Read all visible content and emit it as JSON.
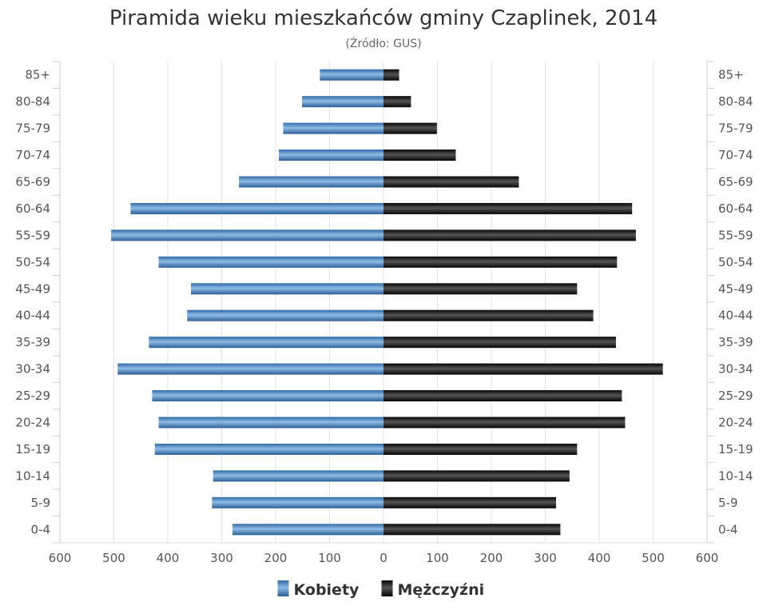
{
  "chart_data": {
    "type": "bar",
    "orientation": "horizontal-pyramid",
    "title": "Piramida wieku mieszkańców gminy Czaplinek, 2014",
    "subtitle": "(Źródło: GUS)",
    "categories": [
      "85+",
      "80-84",
      "75-79",
      "70-74",
      "65-69",
      "60-64",
      "55-59",
      "50-54",
      "45-49",
      "40-44",
      "35-39",
      "30-34",
      "25-29",
      "20-24",
      "15-19",
      "10-14",
      "5-9",
      "0-4"
    ],
    "series": [
      {
        "name": "Kobiety",
        "side": "left",
        "color": "#4a86c0",
        "values": [
          118,
          151,
          186,
          194,
          268,
          469,
          505,
          417,
          357,
          364,
          435,
          493,
          429,
          417,
          424,
          316,
          318,
          280
        ]
      },
      {
        "name": "Mężczyźni",
        "side": "right",
        "color": "#1a1a1a",
        "values": [
          29,
          51,
          99,
          134,
          251,
          461,
          468,
          433,
          359,
          389,
          431,
          518,
          442,
          448,
          359,
          345,
          320,
          328
        ]
      }
    ],
    "xlim": [
      -600,
      600
    ],
    "x_ticks": [
      "600",
      "500",
      "400",
      "300",
      "200",
      "100",
      "0",
      "100",
      "200",
      "300",
      "400",
      "500",
      "600"
    ],
    "grid": true,
    "legend_position": "bottom-center"
  }
}
